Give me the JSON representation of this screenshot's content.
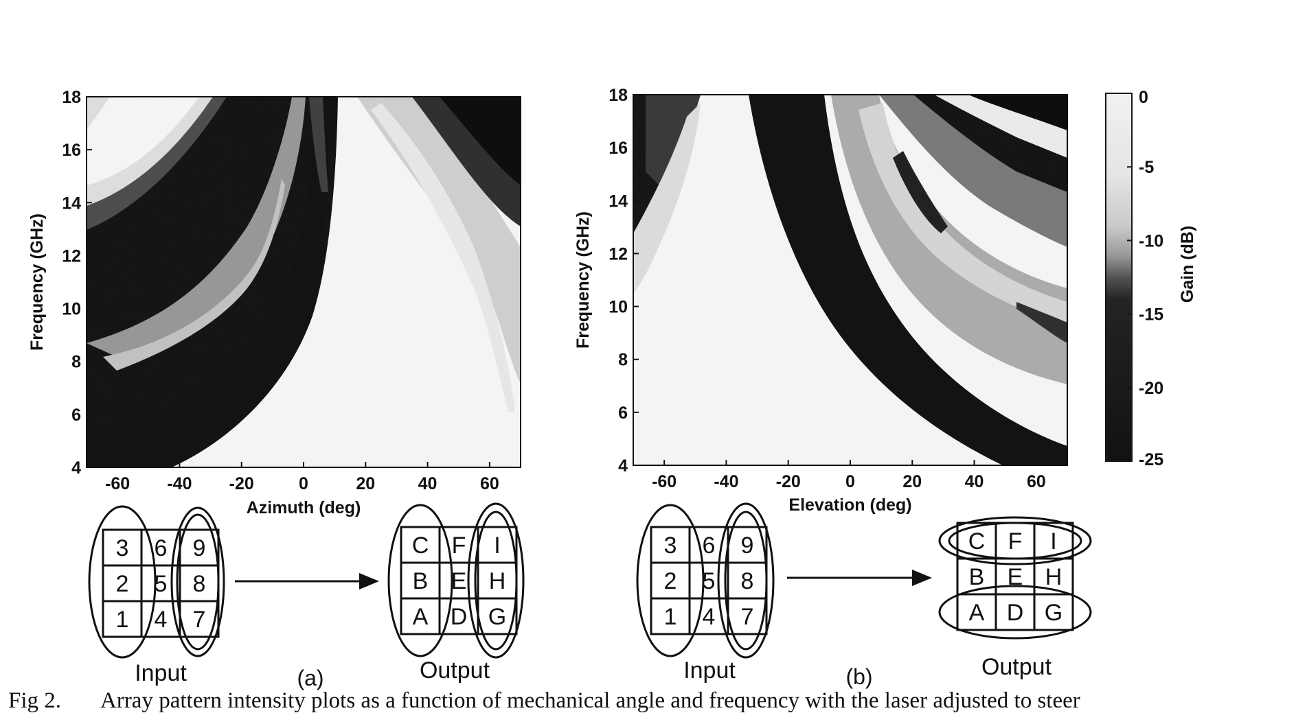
{
  "figure": {
    "panels": [
      {
        "label": "(a)",
        "xlabel": "Azimuth (deg)",
        "ylabel": "Frequency (GHz)",
        "xticks": [
          "-60",
          "-40",
          "-20",
          "0",
          "20",
          "40",
          "60"
        ],
        "yticks": [
          "4",
          "6",
          "8",
          "10",
          "12",
          "14",
          "16",
          "18"
        ]
      },
      {
        "label": "(b)",
        "xlabel": "Elevation (deg)",
        "ylabel": "Frequency (GHz)",
        "xticks": [
          "-60",
          "-40",
          "-20",
          "0",
          "20",
          "40",
          "60"
        ],
        "yticks": [
          "4",
          "6",
          "8",
          "10",
          "12",
          "14",
          "16",
          "18"
        ]
      }
    ],
    "colorbar": {
      "label": "Gain (dB)",
      "ticks": [
        "0",
        "-5",
        "-10",
        "-15",
        "-20",
        "-25"
      ]
    },
    "diagram_words": {
      "input": "Input",
      "output": "Output"
    },
    "input_grid": [
      "3",
      "6",
      "9",
      "2",
      "5",
      "8",
      "1",
      "4",
      "7"
    ],
    "output_grid": [
      "C",
      "F",
      "I",
      "B",
      "E",
      "H",
      "A",
      "D",
      "G"
    ],
    "caption": {
      "number": "Fig 2.",
      "text": "Array pattern intensity plots as a function of mechanical angle and frequency with the laser adjusted to steer"
    }
  },
  "chart_data": [
    {
      "type": "heatmap",
      "title": "",
      "xlabel": "Azimuth (deg)",
      "ylabel": "Frequency (GHz)",
      "xlim": [
        -70,
        70
      ],
      "ylim": [
        4,
        18
      ],
      "colorbar": {
        "label": "Gain (dB)",
        "range": [
          -25,
          0
        ]
      }
    },
    {
      "type": "heatmap",
      "title": "",
      "xlabel": "Elevation (deg)",
      "ylabel": "Frequency (GHz)",
      "xlim": [
        -70,
        70
      ],
      "ylim": [
        4,
        18
      ],
      "colorbar": {
        "label": "Gain (dB)",
        "range": [
          -25,
          0
        ]
      }
    }
  ]
}
